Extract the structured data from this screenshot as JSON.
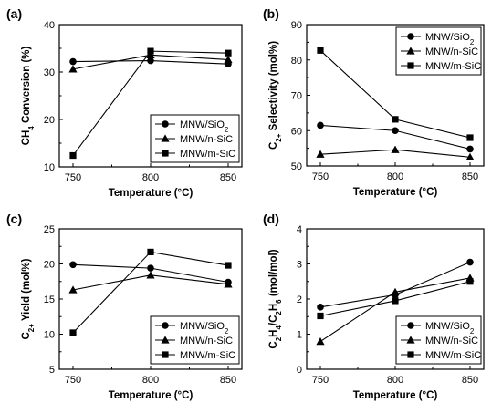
{
  "chart_data": [
    {
      "type": "line",
      "panel_label": "(a)",
      "xlabel": "Temperature (°C)",
      "ylabel_main": "CH",
      "ylabel_sub": "4",
      "ylabel_rest": " Conversion (%)",
      "x": [
        750,
        800,
        850
      ],
      "x_ticks": [
        "750",
        "800",
        "850"
      ],
      "ylim": [
        10,
        40
      ],
      "y_ticks": [
        "10",
        "20",
        "30",
        "40"
      ],
      "legend_position": "bottom-right",
      "series": [
        {
          "name_main": "MNW/SiO",
          "name_sub": "2",
          "marker": "circle",
          "values": [
            32.2,
            32.4,
            31.7
          ]
        },
        {
          "name_main": "MNW/n-SiC",
          "name_sub": "",
          "marker": "triangle",
          "values": [
            30.6,
            33.6,
            32.6
          ]
        },
        {
          "name_main": "MNW/m-SiC",
          "name_sub": "",
          "marker": "square",
          "values": [
            12.4,
            34.4,
            34.0
          ]
        }
      ]
    },
    {
      "type": "line",
      "panel_label": "(b)",
      "xlabel": "Temperature (°C)",
      "ylabel_main": "C",
      "ylabel_sub": "2+",
      "ylabel_rest": " Selectivity (mol%)",
      "x": [
        750,
        800,
        850
      ],
      "x_ticks": [
        "750",
        "800",
        "850"
      ],
      "ylim": [
        50,
        90
      ],
      "y_ticks": [
        "50",
        "60",
        "70",
        "80",
        "90"
      ],
      "legend_position": "top-right",
      "series": [
        {
          "name_main": "MNW/SiO",
          "name_sub": "2",
          "marker": "circle",
          "values": [
            61.5,
            60.0,
            54.8
          ]
        },
        {
          "name_main": "MNW/n-SiC",
          "name_sub": "",
          "marker": "triangle",
          "values": [
            53.3,
            54.6,
            52.5
          ]
        },
        {
          "name_main": "MNW/m-SiC",
          "name_sub": "",
          "marker": "square",
          "values": [
            82.7,
            63.2,
            58.0
          ]
        }
      ]
    },
    {
      "type": "line",
      "panel_label": "(c)",
      "xlabel": "Temperature (°C)",
      "ylabel_main": "C",
      "ylabel_sub": "2+",
      "ylabel_rest": " Yield (mol%)",
      "x": [
        750,
        800,
        850
      ],
      "x_ticks": [
        "750",
        "800",
        "850"
      ],
      "ylim": [
        5,
        25
      ],
      "y_ticks": [
        "5",
        "10",
        "15",
        "20",
        "25"
      ],
      "legend_position": "bottom-right",
      "series": [
        {
          "name_main": "MNW/SiO",
          "name_sub": "2",
          "marker": "circle",
          "values": [
            19.9,
            19.4,
            17.4
          ]
        },
        {
          "name_main": "MNW/n-SiC",
          "name_sub": "",
          "marker": "triangle",
          "values": [
            16.3,
            18.4,
            17.1
          ]
        },
        {
          "name_main": "MNW/m-SiC",
          "name_sub": "",
          "marker": "square",
          "values": [
            10.2,
            21.7,
            19.8
          ]
        }
      ]
    },
    {
      "type": "line",
      "panel_label": "(d)",
      "xlabel": "Temperature (°C)",
      "ylabel_parts": [
        [
          "C",
          ""
        ],
        [
          "2",
          "sub"
        ],
        [
          "H",
          ""
        ],
        [
          "4",
          "sub"
        ],
        [
          "/C",
          ""
        ],
        [
          "2",
          "sub"
        ],
        [
          "H",
          ""
        ],
        [
          "6",
          "sub"
        ],
        [
          " (mol/mol)",
          ""
        ]
      ],
      "x": [
        750,
        800,
        850
      ],
      "x_ticks": [
        "750",
        "800",
        "850"
      ],
      "ylim": [
        0,
        4
      ],
      "y_ticks": [
        "0",
        "1",
        "2",
        "3",
        "4"
      ],
      "legend_position": "bottom-right",
      "series": [
        {
          "name_main": "MNW/SiO",
          "name_sub": "2",
          "marker": "circle",
          "values": [
            1.77,
            2.12,
            3.05
          ]
        },
        {
          "name_main": "MNW/n-SiC",
          "name_sub": "",
          "marker": "triangle",
          "values": [
            0.79,
            2.2,
            2.6
          ]
        },
        {
          "name_main": "MNW/m-SiC",
          "name_sub": "",
          "marker": "square",
          "values": [
            1.52,
            1.95,
            2.5
          ]
        }
      ]
    }
  ]
}
